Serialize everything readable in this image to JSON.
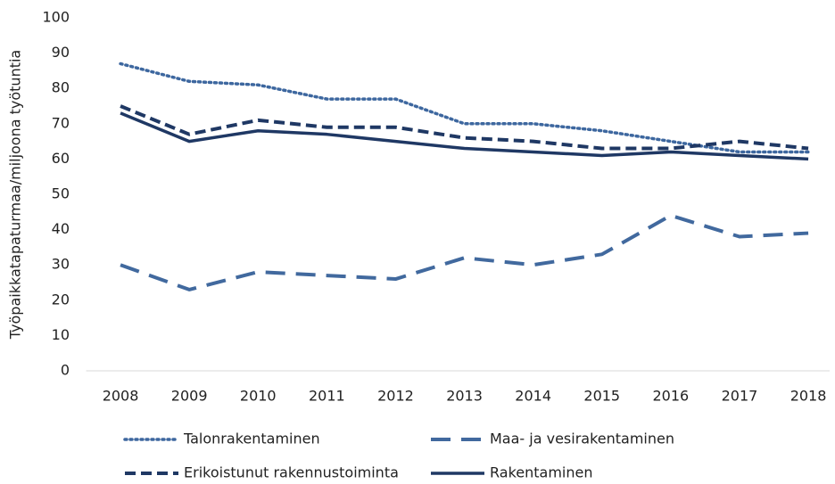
{
  "chart_data": {
    "type": "line",
    "y_label": "Työpaikkatapaturmaa/miljoona työtuntia",
    "categories": [
      "2008",
      "2009",
      "2010",
      "2011",
      "2012",
      "2013",
      "2014",
      "2015",
      "2016",
      "2017",
      "2018"
    ],
    "series": [
      {
        "name": "Talonrakentaminen",
        "color": "#3d679f",
        "style": "dotted",
        "values": [
          87,
          82,
          81,
          77,
          77,
          70,
          70,
          68,
          65,
          62,
          62
        ]
      },
      {
        "name": "Maa- ja vesirakentaminen",
        "color": "#41699e",
        "style": "longdash",
        "values": [
          30,
          23,
          28,
          27,
          26,
          32,
          30,
          33,
          44,
          38,
          39
        ]
      },
      {
        "name": "Erikoistunut rakennustoiminta",
        "color": "#1f3864",
        "style": "dashed",
        "values": [
          75,
          67,
          71,
          69,
          69,
          66,
          65,
          63,
          63,
          65,
          63
        ]
      },
      {
        "name": "Rakentaminen",
        "color": "#1f3864",
        "style": "solid",
        "values": [
          73,
          65,
          68,
          67,
          65,
          63,
          62,
          61,
          62,
          61,
          60
        ]
      }
    ],
    "ylim": [
      0,
      100
    ],
    "yticks": [
      0,
      10,
      20,
      30,
      40,
      50,
      60,
      70,
      80,
      90,
      100
    ],
    "grid": false,
    "legend": "bottom"
  }
}
